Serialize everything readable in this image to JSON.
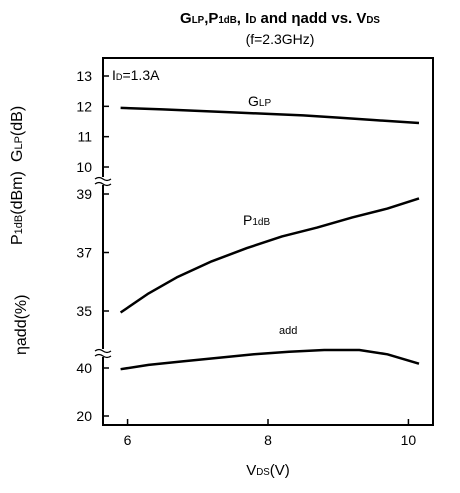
{
  "chart_data": {
    "type": "line",
    "title": {
      "main": "G",
      "sub1": "LP",
      "c1": ",P",
      "sub2": "1dB",
      "c2": ", I",
      "sub3": "D",
      "c3": " and ηadd vs. V",
      "sub4": "DS"
    },
    "subtitle": "(f=2.3GHz)",
    "annotation": {
      "main": "I",
      "sub": "D",
      "rest": "=1.3A"
    },
    "xlabel": {
      "main": "V",
      "sub": "DS",
      "rest": "(V)"
    },
    "x_ticks": [
      "6",
      "8",
      "10"
    ],
    "xlim": [
      5.65,
      10.35
    ],
    "panels": [
      {
        "name": "glp",
        "ylabel": {
          "main": "G",
          "sub": "LP",
          "rest": "(dB)"
        },
        "ylim": [
          10,
          13
        ],
        "y_ticks": [
          "13",
          "12",
          "11",
          "10"
        ],
        "series": [
          {
            "label": {
              "main": "G",
              "sub": "LP"
            },
            "x": [
              5.9,
              6.5,
              7.0,
              7.5,
              8.0,
              8.5,
              9.0,
              9.5,
              10.15
            ],
            "y": [
              11.95,
              11.9,
              11.85,
              11.8,
              11.75,
              11.7,
              11.63,
              11.55,
              11.45
            ]
          }
        ]
      },
      {
        "name": "p1db",
        "ylabel": {
          "main": "P",
          "sub": "1dB",
          "rest": "(dBm)"
        },
        "ylim": [
          35,
          39
        ],
        "y_ticks": [
          "39",
          "37",
          "35"
        ],
        "series": [
          {
            "label": {
              "main": "P",
              "sub": "1dB"
            },
            "x": [
              5.9,
              6.3,
              6.7,
              7.2,
              7.7,
              8.2,
              8.7,
              9.2,
              9.7,
              10.15
            ],
            "y": [
              34.95,
              35.6,
              36.15,
              36.7,
              37.15,
              37.55,
              37.85,
              38.2,
              38.5,
              38.85
            ]
          }
        ]
      },
      {
        "name": "eff",
        "ylabel": {
          "main": "ηadd(%)",
          "sub": "",
          "rest": ""
        },
        "ylim": [
          20,
          40
        ],
        "y_ticks": [
          "40",
          "20"
        ],
        "series": [
          {
            "label": {
              "main": "add",
              "sub": ""
            },
            "x": [
              5.9,
              6.3,
              6.8,
              7.3,
              7.8,
              8.3,
              8.8,
              9.3,
              9.7,
              10.15
            ],
            "y": [
              39.5,
              41.3,
              42.8,
              44.3,
              45.7,
              46.8,
              47.5,
              47.5,
              45.7,
              41.8
            ]
          }
        ]
      }
    ]
  }
}
